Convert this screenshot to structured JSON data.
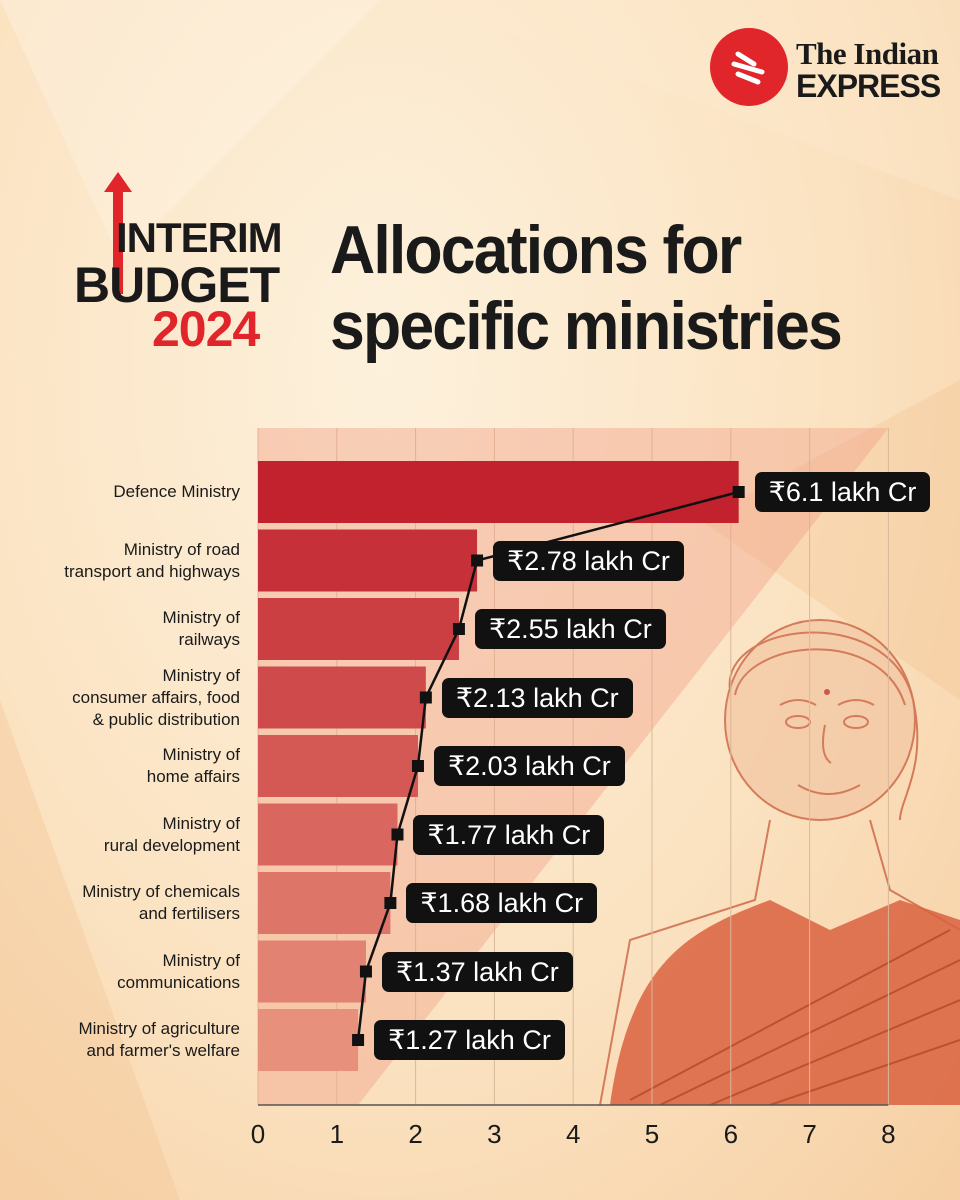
{
  "brand": {
    "line1": "The Indian",
    "line2": "EXPRESS"
  },
  "badge": {
    "line1": "INTERIM",
    "line2": "BUDGET",
    "line3": "2024"
  },
  "title": {
    "line1": "Allocations for",
    "line2": "specific ministries"
  },
  "colors": {
    "accent": "#e0262b",
    "bar_dark": "#c1222e",
    "bar_light": "#e7907c",
    "label_bg": "#111111"
  },
  "chart_data": {
    "type": "bar",
    "orientation": "horizontal",
    "categories": [
      "Defence Ministry",
      "Ministry of road transport and highways",
      "Ministry of railways",
      "Ministry of consumer affairs, food & public distribution",
      "Ministry of home affairs",
      "Ministry of rural development",
      "Ministry of chemicals and fertilisers",
      "Ministry of communications",
      "Ministry of agriculture and farmer's welfare"
    ],
    "category_lines": [
      [
        "Defence Ministry"
      ],
      [
        "Ministry of road",
        "transport and highways"
      ],
      [
        "Ministry of",
        "railways"
      ],
      [
        "Ministry of",
        "consumer affairs, food",
        "& public distribution"
      ],
      [
        "Ministry of",
        "home affairs"
      ],
      [
        "Ministry of",
        "rural development"
      ],
      [
        "Ministry of chemicals",
        "and fertilisers"
      ],
      [
        "Ministry of",
        "communications"
      ],
      [
        "Ministry of agriculture",
        "and farmer's welfare"
      ]
    ],
    "values": [
      6.1,
      2.78,
      2.55,
      2.13,
      2.03,
      1.77,
      1.68,
      1.37,
      1.27
    ],
    "value_labels": [
      "₹6.1 lakh Cr",
      "₹2.78 lakh Cr",
      "₹2.55 lakh Cr",
      "₹2.13 lakh Cr",
      "₹2.03 lakh Cr",
      "₹1.77 lakh Cr",
      "₹1.68 lakh Cr",
      "₹1.37 lakh Cr",
      "₹1.27 lakh Cr"
    ],
    "xlim": [
      0,
      8
    ],
    "xticks": [
      "0",
      "1",
      "2",
      "3",
      "4",
      "5",
      "6",
      "7",
      "8"
    ],
    "grid": true,
    "connector_line": true
  }
}
